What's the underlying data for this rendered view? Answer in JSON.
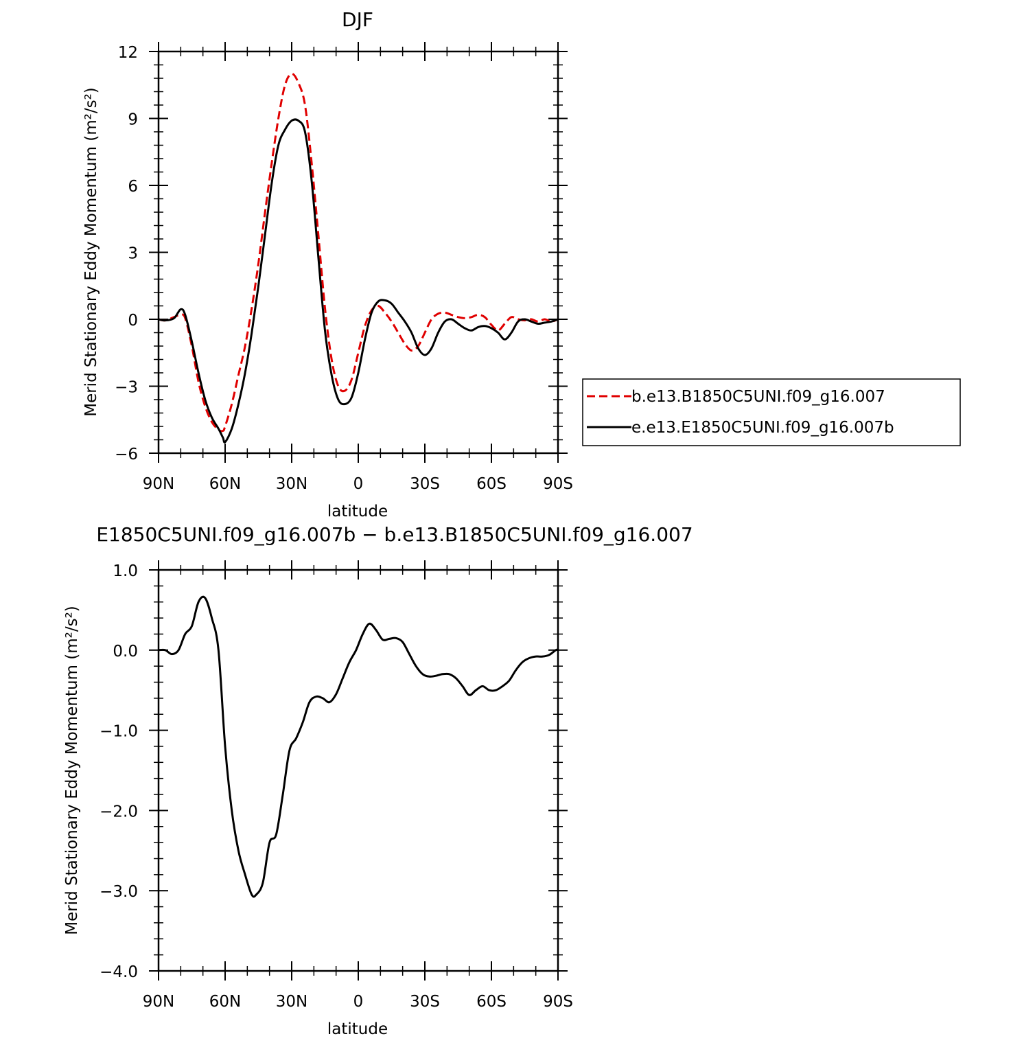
{
  "chart_data": [
    {
      "type": "line",
      "title": "DJF",
      "xlabel": "latitude",
      "ylabel": "Merid Stationary Eddy Momentum (m²/s²)",
      "xlim": [
        90,
        -90
      ],
      "ylim": [
        -6,
        12
      ],
      "x_ticks": [
        90,
        60,
        30,
        0,
        -30,
        -60,
        -90
      ],
      "x_tick_labels": [
        "90N",
        "60N",
        "30N",
        "0",
        "30S",
        "60S",
        "90S"
      ],
      "y_ticks": [
        -6,
        -3,
        0,
        3,
        6,
        9,
        12
      ],
      "y_tick_labels": [
        "−6",
        "−3",
        "0",
        "3",
        "6",
        "9",
        "12"
      ],
      "legend_position": "right",
      "series": [
        {
          "name": "b.e13.B1850C5UNI.f09_g16.007",
          "color": "#e00000",
          "dash": "dashed",
          "x": [
            90,
            87,
            83,
            80,
            78,
            75,
            72,
            69,
            66,
            63,
            61,
            60,
            57,
            54,
            51,
            48,
            45,
            42,
            39,
            36,
            33,
            30,
            27,
            24,
            21,
            18,
            15,
            12,
            9,
            6,
            3,
            0,
            -3,
            -6,
            -9,
            -12,
            -15,
            -18,
            -21,
            -24,
            -27,
            -30,
            -33,
            -36,
            -39,
            -42,
            -45,
            -48,
            -51,
            -54,
            -57,
            -60,
            -63,
            -66,
            -69,
            -72,
            -75,
            -78,
            -81,
            -84,
            -87,
            -90
          ],
          "values": [
            0,
            -0.05,
            0.1,
            0.2,
            0.05,
            -1.2,
            -2.8,
            -3.9,
            -4.6,
            -4.95,
            -5.0,
            -4.8,
            -3.8,
            -2.5,
            -1.2,
            0.5,
            2.5,
            4.8,
            7.0,
            9.0,
            10.5,
            11.0,
            10.6,
            9.6,
            7.0,
            3.8,
            0.5,
            -1.8,
            -3.0,
            -3.2,
            -2.7,
            -1.5,
            -0.3,
            0.4,
            0.6,
            0.3,
            -0.1,
            -0.6,
            -1.1,
            -1.4,
            -1.2,
            -0.6,
            0.0,
            0.25,
            0.3,
            0.2,
            0.1,
            0.05,
            0.1,
            0.2,
            0.1,
            -0.25,
            -0.5,
            -0.2,
            0.1,
            0.0,
            -0.05,
            0.0,
            -0.1,
            0.0,
            -0.1,
            0.0
          ]
        },
        {
          "name": "e.e13.E1850C5UNI.f09_g16.007b",
          "color": "#000000",
          "dash": "solid",
          "x": [
            90,
            87,
            83,
            80,
            78,
            75,
            72,
            69,
            66,
            63,
            61,
            60,
            57,
            54,
            51,
            48,
            45,
            42,
            39,
            36,
            33,
            30,
            27,
            24,
            21,
            18,
            15,
            12,
            9,
            6,
            3,
            0,
            -3,
            -6,
            -9,
            -12,
            -15,
            -18,
            -21,
            -24,
            -27,
            -30,
            -33,
            -36,
            -39,
            -42,
            -45,
            -48,
            -51,
            -54,
            -57,
            -60,
            -63,
            -66,
            -69,
            -72,
            -75,
            -78,
            -81,
            -84,
            -87,
            -90
          ],
          "values": [
            0,
            -0.05,
            0.05,
            0.45,
            0.2,
            -1.0,
            -2.4,
            -3.6,
            -4.4,
            -4.9,
            -5.3,
            -5.5,
            -4.9,
            -3.8,
            -2.4,
            -0.6,
            1.5,
            3.8,
            6.1,
            7.8,
            8.5,
            8.9,
            8.9,
            8.4,
            6.2,
            2.8,
            -0.5,
            -2.5,
            -3.6,
            -3.8,
            -3.5,
            -2.4,
            -0.9,
            0.3,
            0.8,
            0.85,
            0.7,
            0.3,
            -0.1,
            -0.6,
            -1.3,
            -1.6,
            -1.3,
            -0.6,
            -0.1,
            0.0,
            -0.2,
            -0.4,
            -0.5,
            -0.35,
            -0.3,
            -0.4,
            -0.6,
            -0.9,
            -0.6,
            -0.1,
            0.0,
            -0.1,
            -0.2,
            -0.15,
            -0.1,
            0.0
          ]
        }
      ]
    },
    {
      "type": "line",
      "title": "E1850C5UNI.f09_g16.007b − b.e13.B1850C5UNI.f09_g16.007",
      "xlabel": "latitude",
      "ylabel": "Merid Stationary Eddy Momentum (m²/s²)",
      "xlim": [
        90,
        -90
      ],
      "ylim": [
        -4.0,
        1.0
      ],
      "x_ticks": [
        90,
        60,
        30,
        0,
        -30,
        -60,
        -90
      ],
      "x_tick_labels": [
        "90N",
        "60N",
        "30N",
        "0",
        "30S",
        "60S",
        "90S"
      ],
      "y_ticks": [
        -4.0,
        -3.0,
        -2.0,
        -1.0,
        0.0,
        1.0
      ],
      "y_tick_labels": [
        "−4.0",
        "−3.0",
        "−2.0",
        "−1.0",
        "0.0",
        "1.0"
      ],
      "series": [
        {
          "color": "#000000",
          "dash": "solid",
          "x": [
            90,
            87,
            84,
            81,
            78,
            75,
            72,
            69,
            66,
            63,
            60,
            57,
            54,
            51,
            48,
            46,
            43,
            40,
            37,
            34,
            31,
            28,
            25,
            22,
            19,
            16,
            13,
            10,
            7,
            4,
            1,
            -2,
            -5,
            -8,
            -11,
            -14,
            -17,
            -20,
            -23,
            -26,
            -29,
            -32,
            -35,
            -38,
            -41,
            -44,
            -47,
            -50,
            -53,
            -56,
            -59,
            -62,
            -65,
            -68,
            -71,
            -74,
            -77,
            -80,
            -83,
            -86,
            -89,
            -90
          ],
          "values": [
            0.0,
            0.0,
            -0.05,
            0.0,
            0.2,
            0.3,
            0.6,
            0.65,
            0.4,
            0.0,
            -1.2,
            -2.0,
            -2.5,
            -2.8,
            -3.05,
            -3.05,
            -2.9,
            -2.4,
            -2.3,
            -1.8,
            -1.25,
            -1.1,
            -0.9,
            -0.65,
            -0.58,
            -0.6,
            -0.65,
            -0.55,
            -0.35,
            -0.15,
            0.0,
            0.2,
            0.33,
            0.25,
            0.13,
            0.14,
            0.15,
            0.1,
            -0.05,
            -0.2,
            -0.3,
            -0.33,
            -0.32,
            -0.3,
            -0.3,
            -0.35,
            -0.45,
            -0.56,
            -0.5,
            -0.45,
            -0.5,
            -0.5,
            -0.45,
            -0.38,
            -0.25,
            -0.15,
            -0.1,
            -0.08,
            -0.08,
            -0.06,
            0.0,
            0.0
          ]
        }
      ]
    }
  ]
}
